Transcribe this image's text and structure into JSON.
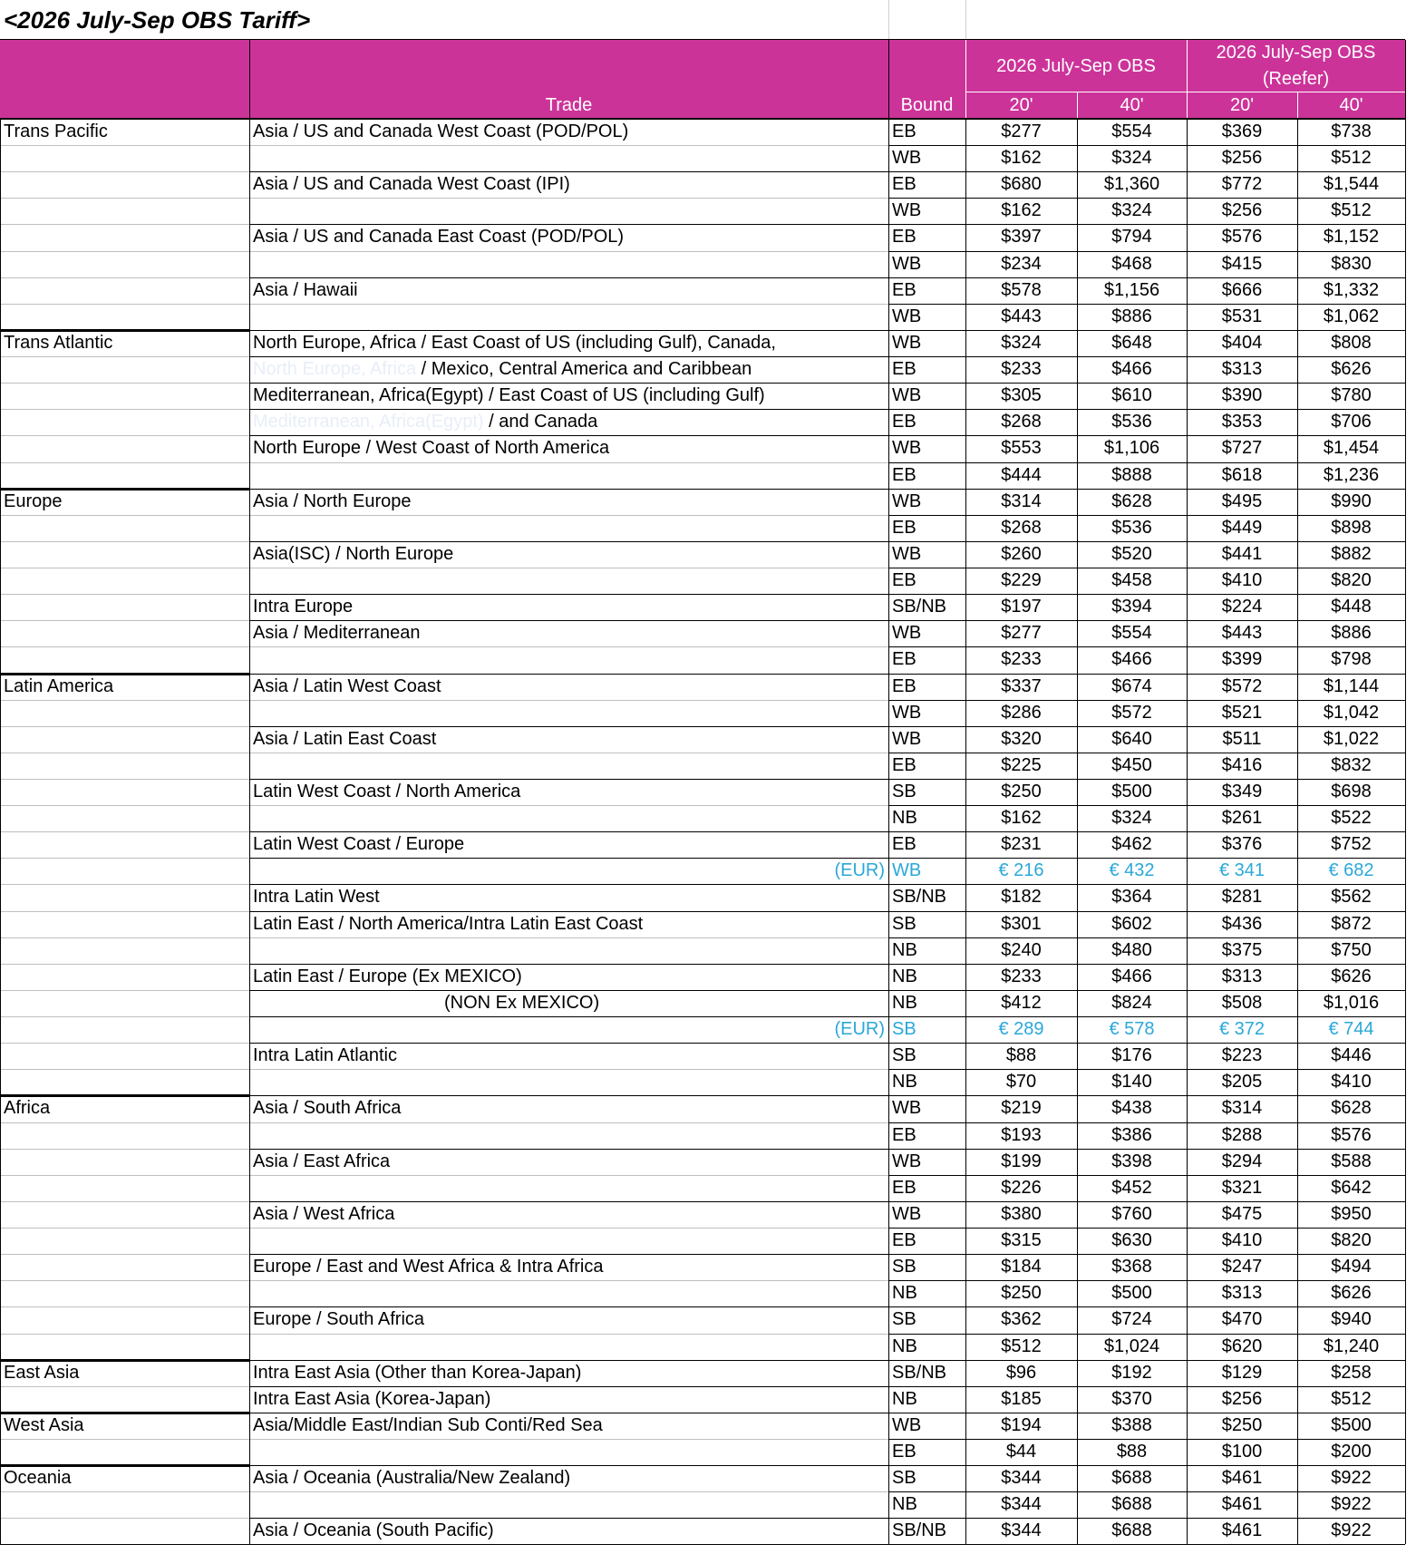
{
  "title": "<2026 July-Sep OBS Tariff>",
  "header": {
    "trade": "Trade",
    "bound": "Bound",
    "obs": "2026 July-Sep OBS",
    "reefer_line1": "2026 July-Sep OBS",
    "reefer_line2": "(Reefer)",
    "c20": "20'",
    "c40": "40'"
  },
  "rows": [
    {
      "region": "Trans Pacific",
      "trade": "Asia / US and Canada West Coast (POD/POL)",
      "bound": "EB",
      "v": [
        "$277",
        "$554",
        "$369",
        "$738"
      ]
    },
    {
      "bound": "WB",
      "v": [
        "$162",
        "$324",
        "$256",
        "$512"
      ]
    },
    {
      "trade": "Asia / US and Canada West Coast (IPI)",
      "bound": "EB",
      "v": [
        "$680",
        "$1,360",
        "$772",
        "$1,544"
      ]
    },
    {
      "bound": "WB",
      "v": [
        "$162",
        "$324",
        "$256",
        "$512"
      ]
    },
    {
      "trade": "Asia / US and Canada East Coast (POD/POL)",
      "bound": "EB",
      "v": [
        "$397",
        "$794",
        "$576",
        "$1,152"
      ]
    },
    {
      "bound": "WB",
      "v": [
        "$234",
        "$468",
        "$415",
        "$830"
      ]
    },
    {
      "trade": "Asia / Hawaii",
      "bound": "EB",
      "v": [
        "$578",
        "$1,156",
        "$666",
        "$1,332"
      ]
    },
    {
      "bound": "WB",
      "v": [
        "$443",
        "$886",
        "$531",
        "$1,062"
      ]
    },
    {
      "region": "Trans Atlantic",
      "trade": "North Europe, Africa / East Coast of US (including Gulf), Canada,",
      "bound": "WB",
      "v": [
        "$324",
        "$648",
        "$404",
        "$808"
      ]
    },
    {
      "ghost": "North Europe, Africa ",
      "trade": "/ Mexico, Central America and Caribbean",
      "bound": "EB",
      "v": [
        "$233",
        "$466",
        "$313",
        "$626"
      ]
    },
    {
      "trade": "Mediterranean, Africa(Egypt) / East Coast of US (including Gulf)",
      "bound": "WB",
      "v": [
        "$305",
        "$610",
        "$390",
        "$780"
      ]
    },
    {
      "ghost": "Mediterranean, Africa(Egypt) ",
      "trade": "/ and Canada",
      "bound": "EB",
      "v": [
        "$268",
        "$536",
        "$353",
        "$706"
      ]
    },
    {
      "trade": "North Europe / West Coast of North America",
      "bound": "WB",
      "v": [
        "$553",
        "$1,106",
        "$727",
        "$1,454"
      ]
    },
    {
      "bound": "EB",
      "v": [
        "$444",
        "$888",
        "$618",
        "$1,236"
      ]
    },
    {
      "region": "Europe",
      "trade": "Asia / North Europe",
      "bound": "WB",
      "v": [
        "$314",
        "$628",
        "$495",
        "$990"
      ]
    },
    {
      "bound": "EB",
      "v": [
        "$268",
        "$536",
        "$449",
        "$898"
      ]
    },
    {
      "trade": "Asia(ISC) / North Europe",
      "bound": "WB",
      "v": [
        "$260",
        "$520",
        "$441",
        "$882"
      ]
    },
    {
      "bound": "EB",
      "v": [
        "$229",
        "$458",
        "$410",
        "$820"
      ]
    },
    {
      "trade": "Intra Europe",
      "bound": "SB/NB",
      "v": [
        "$197",
        "$394",
        "$224",
        "$448"
      ]
    },
    {
      "trade": "Asia / Mediterranean",
      "bound": "WB",
      "v": [
        "$277",
        "$554",
        "$443",
        "$886"
      ]
    },
    {
      "bound": "EB",
      "v": [
        "$233",
        "$466",
        "$399",
        "$798"
      ]
    },
    {
      "region": "Latin America",
      "trade": "Asia / Latin West Coast",
      "bound": "EB",
      "v": [
        "$337",
        "$674",
        "$572",
        "$1,144"
      ]
    },
    {
      "bound": "WB",
      "v": [
        "$286",
        "$572",
        "$521",
        "$1,042"
      ]
    },
    {
      "trade": "Asia / Latin East Coast",
      "bound": "WB",
      "v": [
        "$320",
        "$640",
        "$511",
        "$1,022"
      ]
    },
    {
      "bound": "EB",
      "v": [
        "$225",
        "$450",
        "$416",
        "$832"
      ]
    },
    {
      "trade": "Latin West Coast / North America",
      "bound": "SB",
      "v": [
        "$250",
        "$500",
        "$349",
        "$698"
      ]
    },
    {
      "bound": "NB",
      "v": [
        "$162",
        "$324",
        "$261",
        "$522"
      ]
    },
    {
      "trade": "Latin West Coast / Europe",
      "bound": "EB",
      "v": [
        "$231",
        "$462",
        "$376",
        "$752"
      ]
    },
    {
      "eur": "(EUR)",
      "bound": "WB",
      "v": [
        "€ 216",
        "€ 432",
        "€ 341",
        "€ 682"
      ]
    },
    {
      "trade": "Intra Latin West",
      "bound": "SB/NB",
      "v": [
        "$182",
        "$364",
        "$281",
        "$562"
      ]
    },
    {
      "trade": "Latin East / North America/Intra Latin East Coast",
      "bound": "SB",
      "v": [
        "$301",
        "$602",
        "$436",
        "$872"
      ]
    },
    {
      "bound": "NB",
      "v": [
        "$240",
        "$480",
        "$375",
        "$750"
      ]
    },
    {
      "trade": "Latin East / Europe  (Ex MEXICO)",
      "bound": "NB",
      "v": [
        "$233",
        "$466",
        "$313",
        "$626"
      ]
    },
    {
      "trade2": "(NON Ex MEXICO)",
      "bound": "NB",
      "v": [
        "$412",
        "$824",
        "$508",
        "$1,016"
      ]
    },
    {
      "eur": "(EUR)",
      "bound": "SB",
      "v": [
        "€ 289",
        "€ 578",
        "€ 372",
        "€ 744"
      ]
    },
    {
      "trade": "Intra Latin Atlantic",
      "bound": "SB",
      "v": [
        "$88",
        "$176",
        "$223",
        "$446"
      ]
    },
    {
      "bound": "NB",
      "v": [
        "$70",
        "$140",
        "$205",
        "$410"
      ]
    },
    {
      "region": "Africa",
      "trade": "Asia / South Africa",
      "bound": "WB",
      "v": [
        "$219",
        "$438",
        "$314",
        "$628"
      ]
    },
    {
      "bound": "EB",
      "v": [
        "$193",
        "$386",
        "$288",
        "$576"
      ]
    },
    {
      "trade": "Asia / East Africa",
      "bound": "WB",
      "v": [
        "$199",
        "$398",
        "$294",
        "$588"
      ]
    },
    {
      "bound": "EB",
      "v": [
        "$226",
        "$452",
        "$321",
        "$642"
      ]
    },
    {
      "trade": "Asia / West Africa",
      "bound": "WB",
      "v": [
        "$380",
        "$760",
        "$475",
        "$950"
      ]
    },
    {
      "bound": "EB",
      "v": [
        "$315",
        "$630",
        "$410",
        "$820"
      ]
    },
    {
      "trade": "Europe / East and West Africa & Intra Africa",
      "bound": "SB",
      "v": [
        "$184",
        "$368",
        "$247",
        "$494"
      ]
    },
    {
      "bound": "NB",
      "v": [
        "$250",
        "$500",
        "$313",
        "$626"
      ]
    },
    {
      "trade": "Europe / South Africa",
      "bound": "SB",
      "v": [
        "$362",
        "$724",
        "$470",
        "$940"
      ]
    },
    {
      "bound": "NB",
      "v": [
        "$512",
        "$1,024",
        "$620",
        "$1,240"
      ]
    },
    {
      "region": "East Asia",
      "trade": "Intra East Asia (Other than Korea-Japan)",
      "bound": "SB/NB",
      "v": [
        "$96",
        "$192",
        "$129",
        "$258"
      ]
    },
    {
      "trade": "Intra East Asia (Korea-Japan)",
      "bound": "NB",
      "v": [
        "$185",
        "$370",
        "$256",
        "$512"
      ]
    },
    {
      "region": "West Asia",
      "trade": "Asia/Middle East/Indian Sub Conti/Red Sea",
      "bound": "WB",
      "v": [
        "$194",
        "$388",
        "$250",
        "$500"
      ]
    },
    {
      "bound": "EB",
      "v": [
        "$44",
        "$88",
        "$100",
        "$200"
      ]
    },
    {
      "region": "Oceania",
      "trade": "Asia / Oceania (Australia/New Zealand)",
      "bound": "SB",
      "v": [
        "$344",
        "$688",
        "$461",
        "$922"
      ]
    },
    {
      "bound": "NB",
      "v": [
        "$344",
        "$688",
        "$461",
        "$922"
      ]
    },
    {
      "trade": "Asia / Oceania (South Pacific)",
      "bound": "SB/NB",
      "v": [
        "$344",
        "$688",
        "$461",
        "$922"
      ]
    }
  ]
}
